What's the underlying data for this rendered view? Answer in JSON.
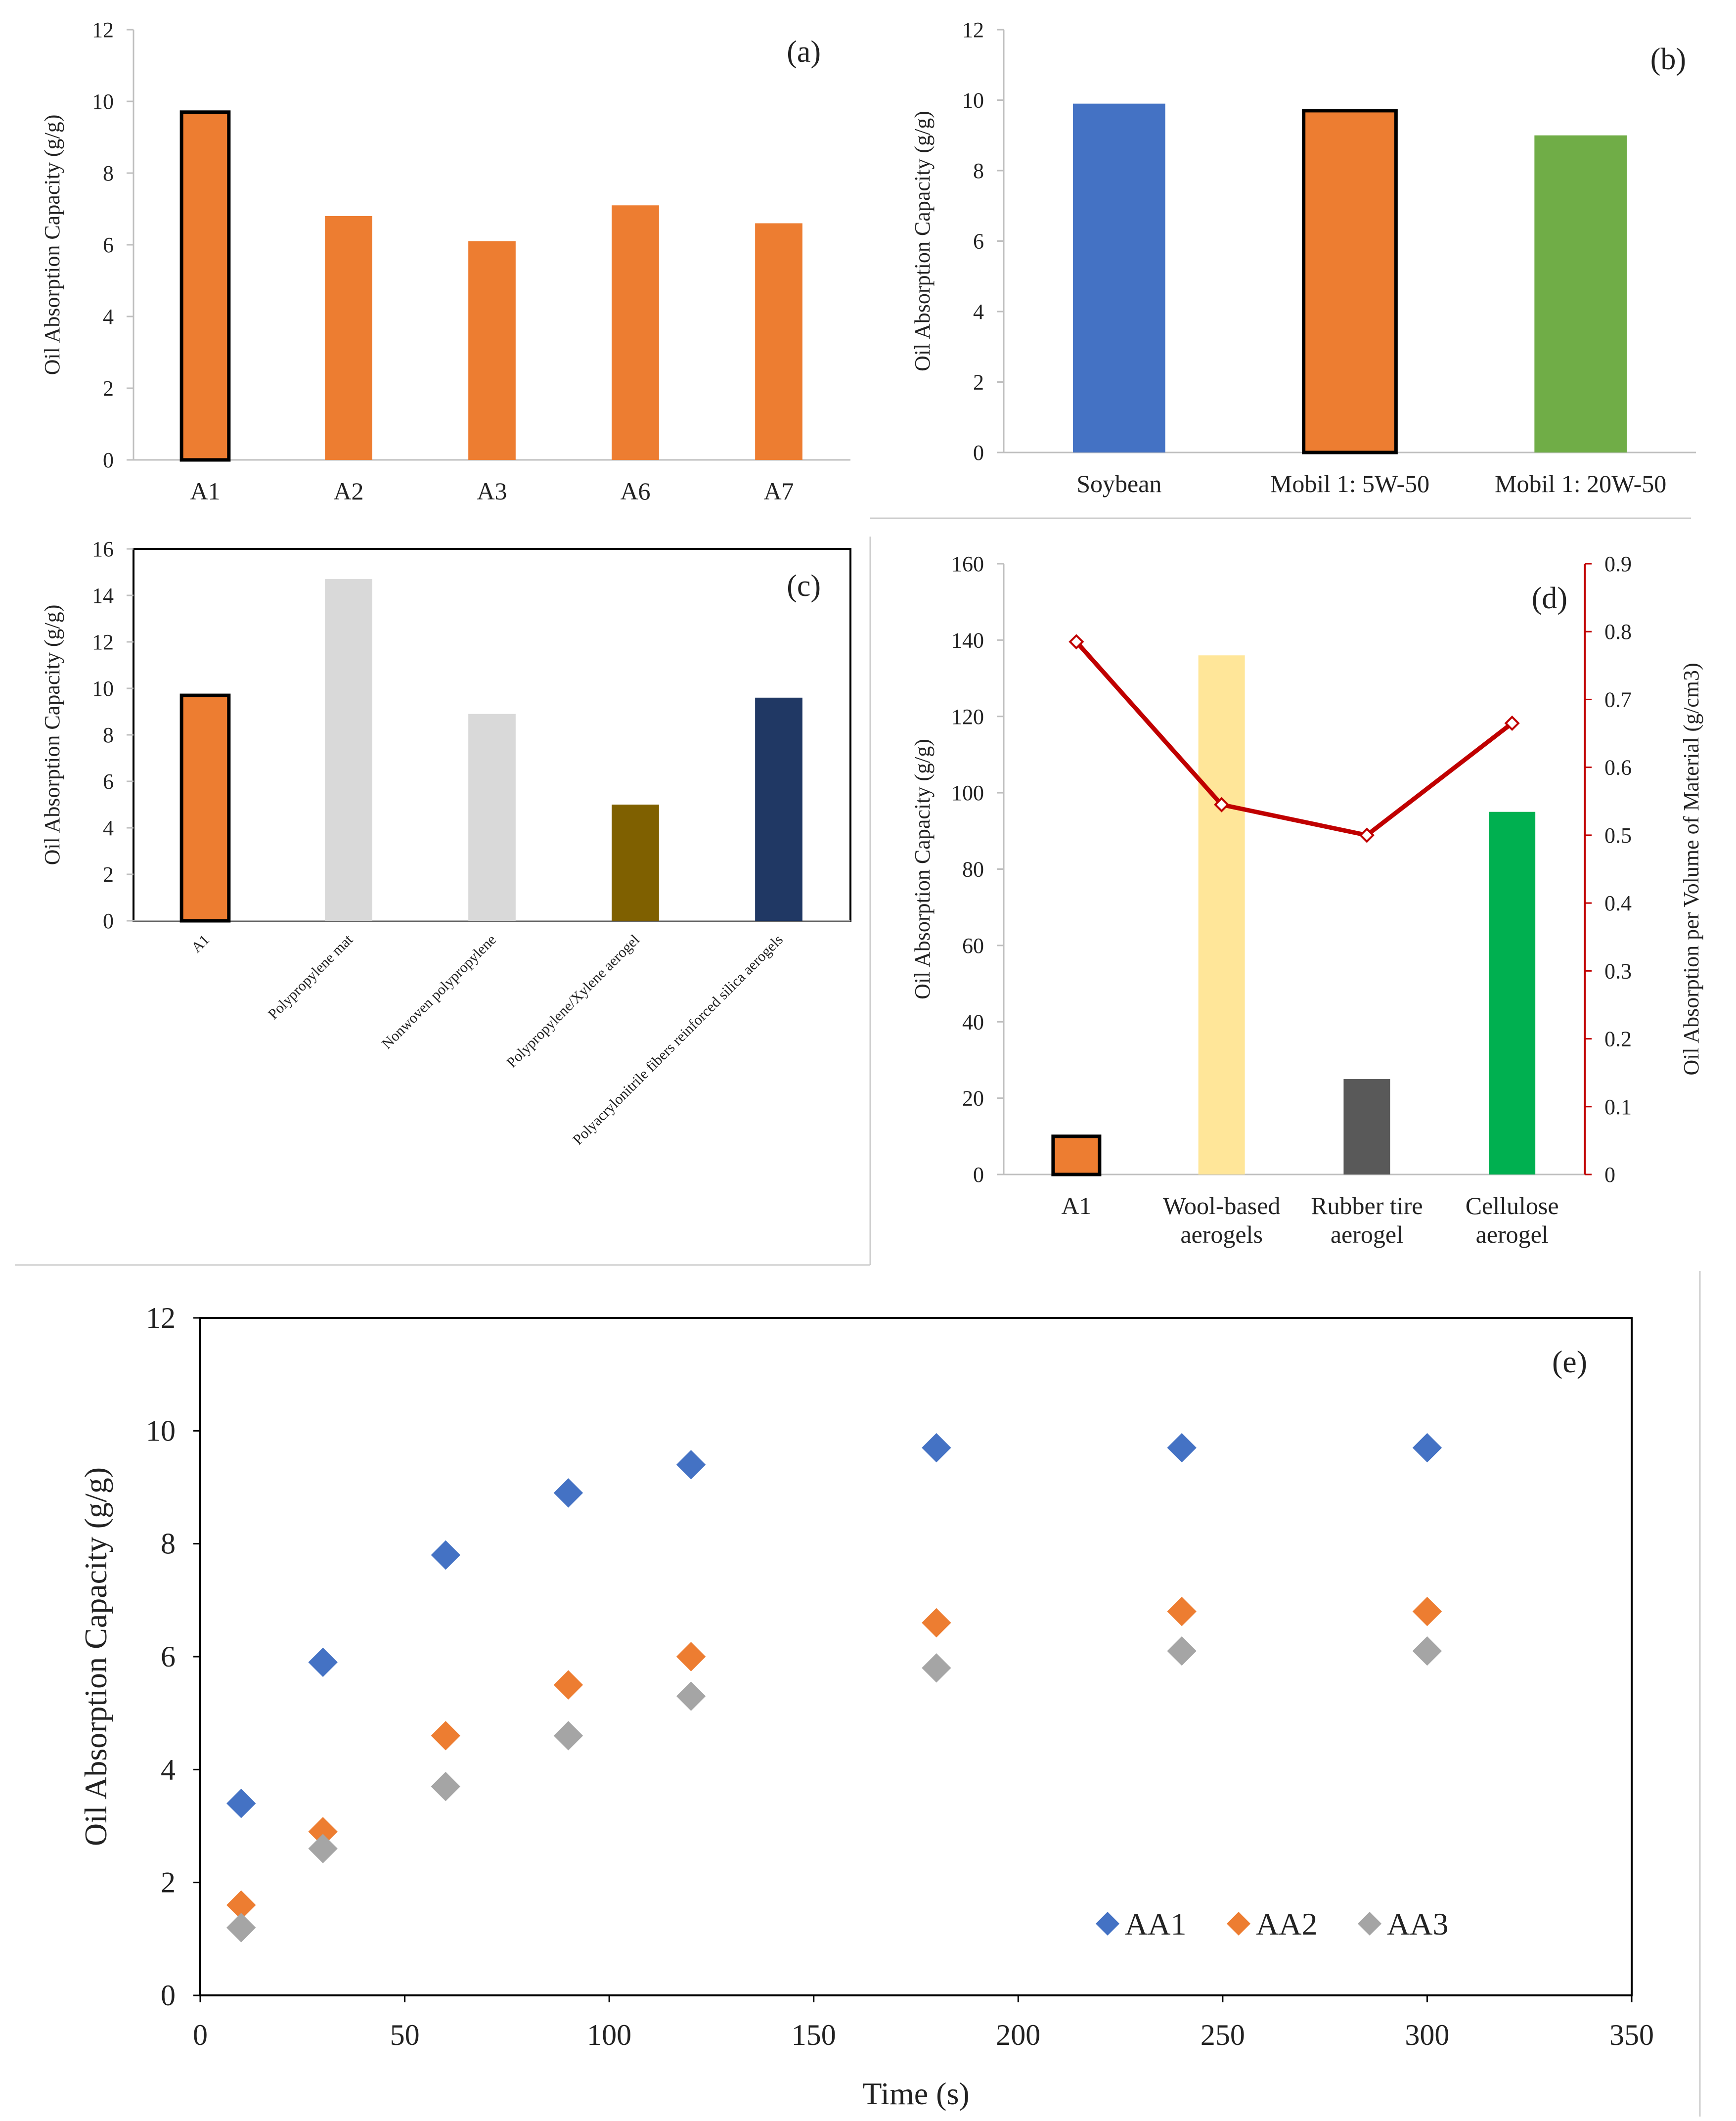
{
  "colors": {
    "orange": "#ED7D31",
    "blue": "#4472C4",
    "green": "#70AD47",
    "light_gray": "#D9D9D9",
    "olive": "#7F6000",
    "navy": "#203864",
    "yellow": "#FFE699",
    "dark_gray": "#595959",
    "bright_green": "#00B050",
    "dark_red": "#C00000",
    "marker_gray": "#A5A5A5"
  },
  "chart_data": [
    {
      "panel": "a",
      "tag": "(a)",
      "type": "bar",
      "categories": [
        "A1",
        "A2",
        "A3",
        "A6",
        "A7"
      ],
      "values": [
        9.7,
        6.8,
        6.1,
        7.1,
        6.6
      ],
      "highlighted": [
        "A1"
      ],
      "ylabel": "Oil Absorption Capacity (g/g)",
      "ylim": [
        0,
        12
      ],
      "yticks": [
        "0",
        "2",
        "4",
        "6",
        "8",
        "10",
        "12"
      ]
    },
    {
      "panel": "b",
      "tag": "(b)",
      "type": "bar",
      "categories": [
        "Soybean",
        "Mobil 1: 5W-50",
        "Mobil 1: 20W-50"
      ],
      "values": [
        9.9,
        9.7,
        9.0
      ],
      "highlighted": [
        "Mobil 1: 5W-50"
      ],
      "ylabel": "Oil Absorption  Capacity (g/g)",
      "ylim": [
        0,
        12
      ],
      "yticks": [
        "0",
        "2",
        "4",
        "6",
        "8",
        "10",
        "12"
      ]
    },
    {
      "panel": "c",
      "tag": "(c)",
      "type": "bar",
      "categories": [
        "A1",
        "Polypropylene mat",
        "Nonwoven polypropylene",
        "Polypropylene/Xylene aerogel",
        "Polyacrylonitrile fibers reinforced silica aerogels"
      ],
      "values": [
        9.7,
        14.7,
        8.9,
        5.0,
        9.6
      ],
      "highlighted": [
        "A1"
      ],
      "ylabel": "Oil Absorption Capacity (g/g)",
      "ylim": [
        0,
        16
      ],
      "yticks": [
        "0",
        "2",
        "4",
        "6",
        "8",
        "10",
        "12",
        "14",
        "16"
      ]
    },
    {
      "panel": "d",
      "tag": "(d)",
      "type": "bar+line",
      "categories": [
        "A1",
        "Wool-based aerogels",
        "Rubber tire aerogel",
        "Cellulose aerogel"
      ],
      "category_lines": [
        [
          "A1"
        ],
        [
          "Wool-based",
          "aerogels"
        ],
        [
          "Rubber tire",
          "aerogel"
        ],
        [
          "Cellulose",
          "aerogel"
        ]
      ],
      "values": [
        10,
        136,
        25,
        95
      ],
      "line_values": [
        0.785,
        0.545,
        0.5,
        0.665
      ],
      "highlighted": [
        "A1"
      ],
      "ylabel": "Oil Absorption Capacity (g/g)",
      "y2label": "Oil Absorption per Volume of Material (g/cm3)",
      "ylim": [
        0,
        160
      ],
      "y2lim": [
        0,
        0.9
      ],
      "yticks": [
        "0",
        "20",
        "40",
        "60",
        "80",
        "100",
        "120",
        "140",
        "160"
      ],
      "y2ticks": [
        "0",
        "0.1",
        "0.2",
        "0.3",
        "0.4",
        "0.5",
        "0.6",
        "0.7",
        "0.8",
        "0.9"
      ]
    },
    {
      "panel": "e",
      "tag": "(e)",
      "type": "scatter",
      "x": [
        10,
        30,
        60,
        90,
        120,
        180,
        240,
        300
      ],
      "series": [
        {
          "name": "AA1",
          "values": [
            3.4,
            5.9,
            7.8,
            8.9,
            9.4,
            9.7,
            9.7,
            9.7
          ]
        },
        {
          "name": "AA2",
          "values": [
            1.6,
            2.9,
            4.6,
            5.5,
            6.0,
            6.6,
            6.8,
            6.8
          ]
        },
        {
          "name": "AA3",
          "values": [
            1.2,
            2.6,
            3.7,
            4.6,
            5.3,
            5.8,
            6.1,
            6.1
          ]
        }
      ],
      "xlabel": "Time (s)",
      "ylabel": "Oil Absorption Capacity (g/g)",
      "xlim": [
        0,
        350
      ],
      "ylim": [
        0,
        12
      ],
      "xticks": [
        "0",
        "50",
        "100",
        "150",
        "200",
        "250",
        "300",
        "350"
      ],
      "yticks": [
        "0",
        "2",
        "4",
        "6",
        "8",
        "10",
        "12"
      ],
      "legend": "bottom-right"
    }
  ]
}
